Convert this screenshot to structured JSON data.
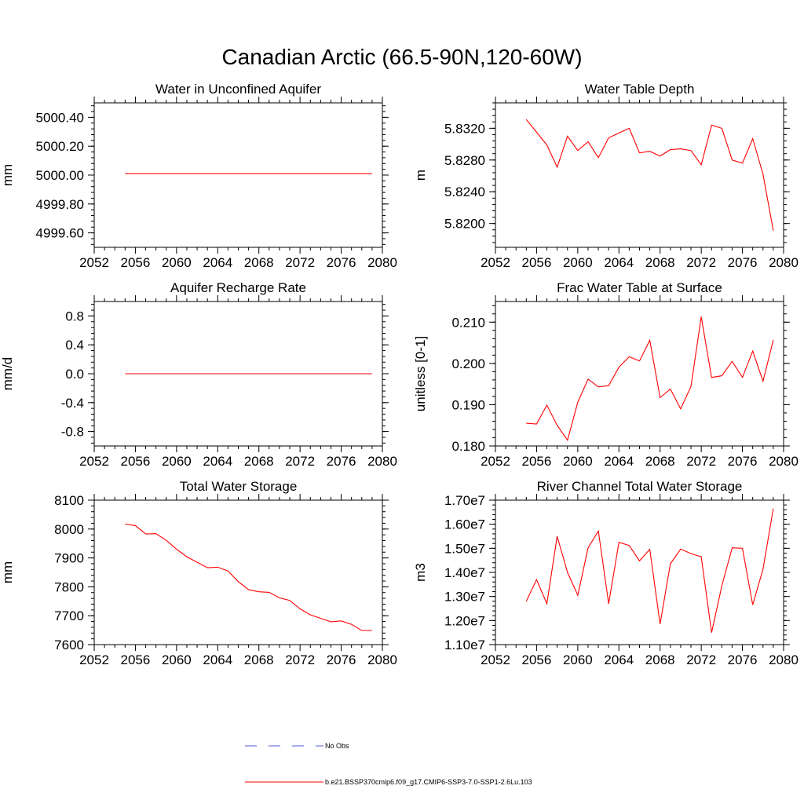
{
  "figure": {
    "title": "Canadian Arctic (66.5-90N,120-60W)"
  },
  "legend": {
    "entries": [
      {
        "label": "No Obs",
        "color": "#4b5bd6",
        "style": "dashed"
      },
      {
        "label": "b.e21.BSSP370cmip6.f09_g17.CMIP6-SSP3-7.0-SSP1-2.6Lu.103",
        "color": "#ff0000",
        "style": "solid"
      }
    ]
  },
  "chart_data": [
    {
      "type": "line",
      "title": "Water in Unconfined Aquifer",
      "xlabel": "",
      "ylabel": "mm",
      "xlim": [
        2052,
        2080
      ],
      "ylim": [
        4999.5,
        5000.5
      ],
      "xticks": [
        "2052",
        "2056",
        "2060",
        "2064",
        "2068",
        "2072",
        "2076",
        "2080"
      ],
      "yticks": [
        "4999.60",
        "4999.80",
        "5000.00",
        "5000.20",
        "5000.40"
      ],
      "x": [
        2055,
        2056,
        2057,
        2058,
        2059,
        2060,
        2061,
        2062,
        2063,
        2064,
        2065,
        2066,
        2067,
        2068,
        2069,
        2070,
        2071,
        2072,
        2073,
        2074,
        2075,
        2076,
        2077,
        2078,
        2079
      ],
      "series": [
        {
          "color": "#ff0000",
          "values": [
            5000.01,
            5000.01,
            5000.01,
            5000.01,
            5000.01,
            5000.01,
            5000.01,
            5000.01,
            5000.01,
            5000.01,
            5000.01,
            5000.01,
            5000.01,
            5000.01,
            5000.01,
            5000.01,
            5000.01,
            5000.01,
            5000.01,
            5000.01,
            5000.01,
            5000.01,
            5000.01,
            5000.01,
            5000.01
          ]
        }
      ]
    },
    {
      "type": "line",
      "title": "Water Table Depth",
      "xlabel": "",
      "ylabel": "m",
      "xlim": [
        2052,
        2080
      ],
      "ylim": [
        5.817,
        5.8352
      ],
      "xticks": [
        "2052",
        "2056",
        "2060",
        "2064",
        "2068",
        "2072",
        "2076",
        "2080"
      ],
      "yticks": [
        "5.8200",
        "5.8240",
        "5.8280",
        "5.8320"
      ],
      "x": [
        2055,
        2056,
        2057,
        2058,
        2059,
        2060,
        2061,
        2062,
        2063,
        2064,
        2065,
        2066,
        2067,
        2068,
        2069,
        2070,
        2071,
        2072,
        2073,
        2074,
        2075,
        2076,
        2077,
        2078,
        2079
      ],
      "series": [
        {
          "color": "#ff0000",
          "values": [
            5.8331,
            5.8315,
            5.8299,
            5.8271,
            5.831,
            5.8292,
            5.8303,
            5.8283,
            5.8308,
            5.8314,
            5.832,
            5.8289,
            5.8291,
            5.8285,
            5.8293,
            5.8294,
            5.8292,
            5.8274,
            5.8324,
            5.832,
            5.828,
            5.8276,
            5.8307,
            5.8262,
            5.8191
          ]
        }
      ]
    },
    {
      "type": "line",
      "title": "Aquifer Recharge Rate",
      "xlabel": "",
      "ylabel": "mm/d",
      "xlim": [
        2052,
        2080
      ],
      "ylim": [
        -1.0,
        1.0
      ],
      "xticks": [
        "2052",
        "2056",
        "2060",
        "2064",
        "2068",
        "2072",
        "2076",
        "2080"
      ],
      "yticks": [
        "-0.8",
        "-0.4",
        "0.0",
        "0.4",
        "0.8"
      ],
      "x": [
        2055,
        2056,
        2057,
        2058,
        2059,
        2060,
        2061,
        2062,
        2063,
        2064,
        2065,
        2066,
        2067,
        2068,
        2069,
        2070,
        2071,
        2072,
        2073,
        2074,
        2075,
        2076,
        2077,
        2078,
        2079
      ],
      "series": [
        {
          "color": "#ff0000",
          "values": [
            0,
            0,
            0,
            0,
            0,
            0,
            0,
            0,
            0,
            0,
            0,
            0,
            0,
            0,
            0,
            0,
            0,
            0,
            0,
            0,
            0,
            0,
            0,
            0,
            0
          ]
        }
      ]
    },
    {
      "type": "line",
      "title": "Frac Water Table at Surface",
      "xlabel": "",
      "ylabel": "unitless [0-1]",
      "xlim": [
        2052,
        2080
      ],
      "ylim": [
        0.18,
        0.215
      ],
      "xticks": [
        "2052",
        "2056",
        "2060",
        "2064",
        "2068",
        "2072",
        "2076",
        "2080"
      ],
      "yticks": [
        "0.180",
        "0.190",
        "0.200",
        "0.210"
      ],
      "x": [
        2055,
        2056,
        2057,
        2058,
        2059,
        2060,
        2061,
        2062,
        2063,
        2064,
        2065,
        2066,
        2067,
        2068,
        2069,
        2070,
        2071,
        2072,
        2073,
        2074,
        2075,
        2076,
        2077,
        2078,
        2079
      ],
      "series": [
        {
          "color": "#ff0000",
          "values": [
            0.1855,
            0.1853,
            0.1899,
            0.185,
            0.1814,
            0.1906,
            0.1962,
            0.1943,
            0.1946,
            0.1991,
            0.2016,
            0.2006,
            0.2056,
            0.1917,
            0.1938,
            0.189,
            0.1944,
            0.2113,
            0.1966,
            0.197,
            0.2005,
            0.1966,
            0.203,
            0.1957,
            0.2057
          ]
        }
      ]
    },
    {
      "type": "line",
      "title": "Total Water Storage",
      "xlabel": "",
      "ylabel": "mm",
      "xlim": [
        2052,
        2080
      ],
      "ylim": [
        7600,
        8100
      ],
      "xticks": [
        "2052",
        "2056",
        "2060",
        "2064",
        "2068",
        "2072",
        "2076",
        "2080"
      ],
      "yticks": [
        "7600",
        "7700",
        "7800",
        "7900",
        "8000",
        "8100"
      ],
      "x": [
        2055,
        2056,
        2057,
        2058,
        2059,
        2060,
        2061,
        2062,
        2063,
        2064,
        2065,
        2066,
        2067,
        2068,
        2069,
        2070,
        2071,
        2072,
        2073,
        2074,
        2075,
        2076,
        2077,
        2078,
        2079
      ],
      "series": [
        {
          "color": "#ff0000",
          "values": [
            8017,
            8012,
            7983,
            7984,
            7961,
            7930,
            7904,
            7885,
            7866,
            7868,
            7855,
            7818,
            7790,
            7783,
            7781,
            7762,
            7753,
            7724,
            7703,
            7691,
            7679,
            7682,
            7670,
            7649,
            7649
          ]
        }
      ]
    },
    {
      "type": "line",
      "title": "River Channel Total Water Storage",
      "xlabel": "",
      "ylabel": "m3",
      "xlim": [
        2052,
        2080
      ],
      "ylim": [
        11000000,
        17000000
      ],
      "xticks": [
        "2052",
        "2056",
        "2060",
        "2064",
        "2068",
        "2072",
        "2076",
        "2080"
      ],
      "yticks": [
        "1.10e7",
        "1.20e7",
        "1.30e7",
        "1.40e7",
        "1.50e7",
        "1.60e7",
        "1.70e7"
      ],
      "x": [
        2055,
        2056,
        2057,
        2058,
        2059,
        2060,
        2061,
        2062,
        2063,
        2064,
        2065,
        2066,
        2067,
        2068,
        2069,
        2070,
        2071,
        2072,
        2073,
        2074,
        2075,
        2076,
        2077,
        2078,
        2079
      ],
      "series": [
        {
          "color": "#ff0000",
          "values": [
            12800000,
            13700000,
            12700000,
            15500000,
            14000000,
            13050000,
            15020000,
            15720000,
            12700000,
            15250000,
            15120000,
            14480000,
            14960000,
            11850000,
            14360000,
            14970000,
            14780000,
            14650000,
            11500000,
            13450000,
            15020000,
            15000000,
            12650000,
            14140000,
            16650000
          ]
        }
      ]
    }
  ]
}
